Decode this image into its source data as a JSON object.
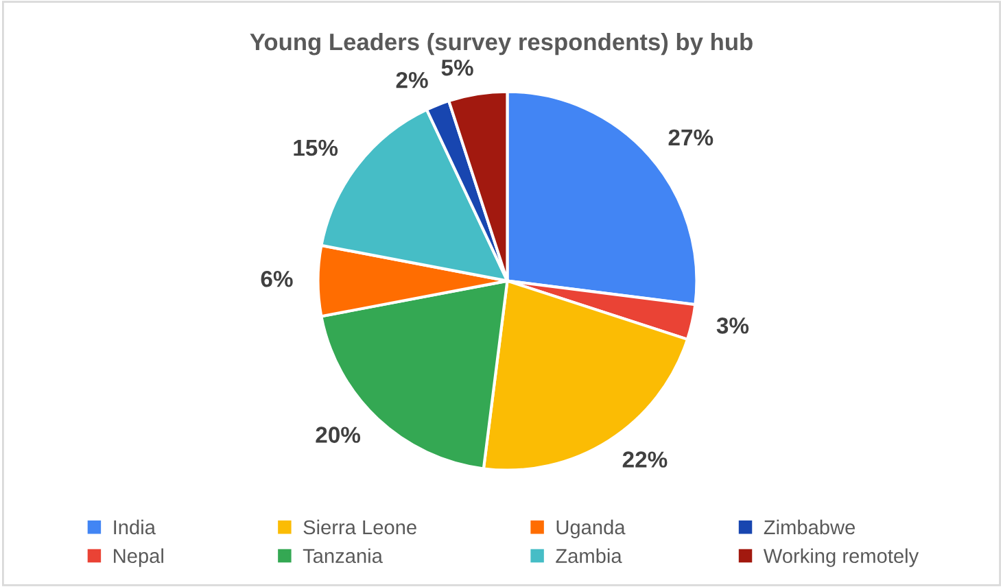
{
  "chart_data": {
    "type": "pie",
    "title": "Young Leaders (survey respondents) by hub",
    "categories": [
      "India",
      "Nepal",
      "Sierra Leone",
      "Tanzania",
      "Uganda",
      "Zambia",
      "Zimbabwe",
      "Working remotely"
    ],
    "values": [
      27,
      3,
      22,
      20,
      6,
      15,
      2,
      5
    ],
    "value_labels": [
      "27%",
      "3%",
      "22%",
      "20%",
      "6%",
      "15%",
      "2%",
      "5%"
    ],
    "colors": [
      "#4285f4",
      "#ea4335",
      "#fbbc04",
      "#34a853",
      "#ff6d01",
      "#46bdc6",
      "#1846b0",
      "#a2190f"
    ],
    "legend": "bottom"
  }
}
